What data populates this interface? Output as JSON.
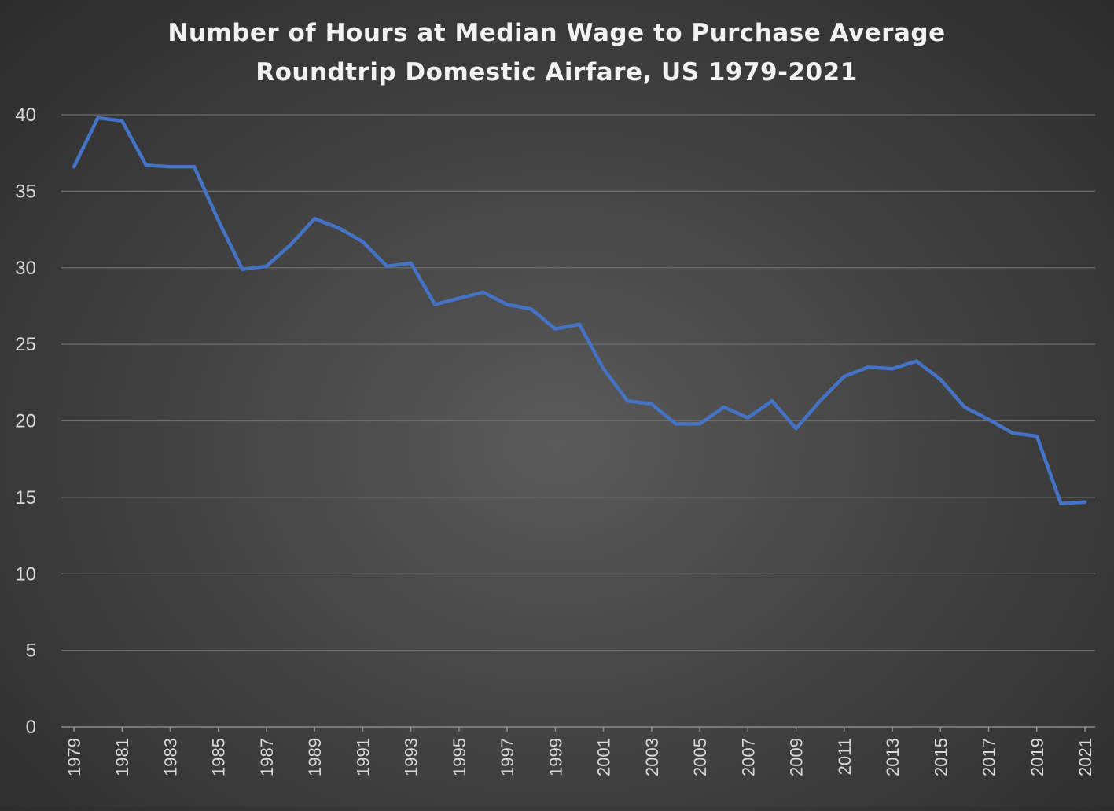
{
  "chart_data": {
    "type": "line",
    "title_lines": [
      "Number of Hours at Median Wage to Purchase Average",
      "Roundtrip Domestic Airfare, US 1979-2021"
    ],
    "xlabel": "",
    "ylabel": "",
    "ylim": [
      0,
      40
    ],
    "y_ticks": [
      0,
      5,
      10,
      15,
      20,
      25,
      30,
      35,
      40
    ],
    "grid": true,
    "x": [
      1979,
      1980,
      1981,
      1982,
      1983,
      1984,
      1985,
      1986,
      1987,
      1988,
      1989,
      1990,
      1991,
      1992,
      1993,
      1994,
      1995,
      1996,
      1997,
      1998,
      1999,
      2000,
      2001,
      2002,
      2003,
      2004,
      2005,
      2006,
      2007,
      2008,
      2009,
      2010,
      2011,
      2012,
      2013,
      2014,
      2015,
      2016,
      2017,
      2018,
      2019,
      2020,
      2021
    ],
    "x_tick_labels": [
      "1979",
      "1981",
      "1983",
      "1985",
      "1987",
      "1989",
      "1991",
      "1993",
      "1995",
      "1997",
      "1999",
      "2001",
      "2003",
      "2005",
      "2007",
      "2009",
      "2011",
      "2013",
      "2015",
      "2017",
      "2019",
      "2021"
    ],
    "series": [
      {
        "color": "#4472c4",
        "values": [
          36.6,
          39.8,
          39.6,
          36.7,
          36.6,
          36.6,
          33.1,
          29.9,
          30.1,
          31.5,
          33.2,
          32.6,
          31.7,
          30.1,
          30.3,
          27.6,
          28.0,
          28.4,
          27.6,
          27.3,
          26.0,
          26.3,
          23.4,
          21.3,
          21.1,
          19.8,
          19.8,
          20.9,
          20.2,
          21.3,
          19.5,
          21.3,
          22.9,
          23.5,
          23.4,
          23.9,
          22.7,
          20.9,
          20.1,
          19.2,
          19.0,
          14.6,
          14.7
        ]
      }
    ]
  }
}
